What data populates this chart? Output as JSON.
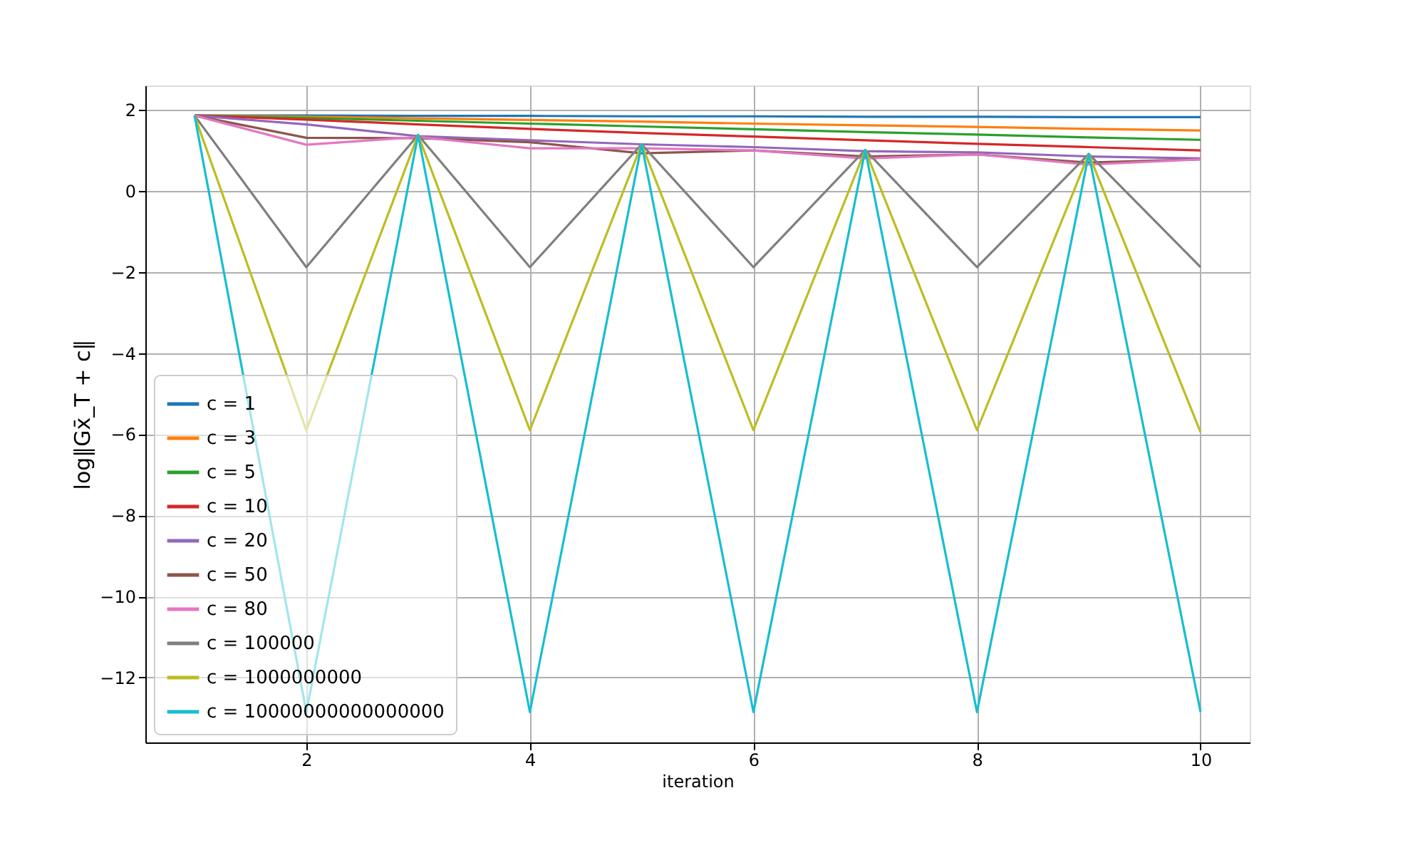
{
  "chart_data": {
    "type": "line",
    "xlabel": "iteration",
    "ylabel": "log‖Gx̄_T + c‖",
    "x": [
      1,
      2,
      3,
      4,
      5,
      6,
      7,
      8,
      9,
      10
    ],
    "xlim": [
      0.56,
      10.44
    ],
    "xticks": [
      2,
      4,
      6,
      8,
      10
    ],
    "ylim": [
      -13.6,
      2.6
    ],
    "yticks": [
      -12,
      -10,
      -8,
      -6,
      -4,
      -2,
      0,
      2
    ],
    "grid": true,
    "legend": "bottom left",
    "marker": "none",
    "line_style": "solid",
    "series": [
      {
        "name": "c = 1",
        "color": "#1f77b4",
        "values": [
          1.86,
          1.86,
          1.85,
          1.85,
          1.84,
          1.84,
          1.83,
          1.83,
          1.82,
          1.82
        ]
      },
      {
        "name": "c = 3",
        "color": "#ff7f0e",
        "values": [
          1.86,
          1.83,
          1.79,
          1.75,
          1.71,
          1.66,
          1.62,
          1.58,
          1.53,
          1.49
        ]
      },
      {
        "name": "c = 5",
        "color": "#2ca02c",
        "values": [
          1.86,
          1.8,
          1.73,
          1.66,
          1.59,
          1.52,
          1.45,
          1.39,
          1.32,
          1.26
        ]
      },
      {
        "name": "c = 10",
        "color": "#d62728",
        "values": [
          1.86,
          1.76,
          1.64,
          1.53,
          1.43,
          1.34,
          1.25,
          1.16,
          1.08,
          1.0
        ]
      },
      {
        "name": "c = 20",
        "color": "#9467bd",
        "values": [
          1.86,
          1.64,
          1.35,
          1.25,
          1.15,
          1.08,
          0.98,
          0.95,
          0.85,
          0.8
        ]
      },
      {
        "name": "c = 50",
        "color": "#8c564b",
        "values": [
          1.86,
          1.31,
          1.3,
          1.2,
          0.93,
          1.0,
          0.85,
          0.9,
          0.7,
          0.78
        ]
      },
      {
        "name": "c = 80",
        "color": "#e377c2",
        "values": [
          1.86,
          1.14,
          1.33,
          1.05,
          1.05,
          1.0,
          0.8,
          0.9,
          0.65,
          0.78
        ]
      },
      {
        "name": "c = 100000",
        "color": "#7f7f7f",
        "values": [
          1.86,
          -1.88,
          1.38,
          -1.88,
          1.15,
          -1.88,
          1.01,
          -1.88,
          0.91,
          -1.88
        ]
      },
      {
        "name": "c = 1000000000",
        "color": "#bcbd22",
        "values": [
          1.86,
          -5.9,
          1.38,
          -5.9,
          1.15,
          -5.9,
          1.01,
          -5.9,
          0.91,
          -5.95
        ]
      },
      {
        "name": "c = 10000000000000000",
        "color": "#17becf",
        "values": [
          1.86,
          -12.85,
          1.38,
          -12.85,
          1.15,
          -12.85,
          1.01,
          -12.85,
          0.91,
          -12.85
        ]
      }
    ]
  }
}
